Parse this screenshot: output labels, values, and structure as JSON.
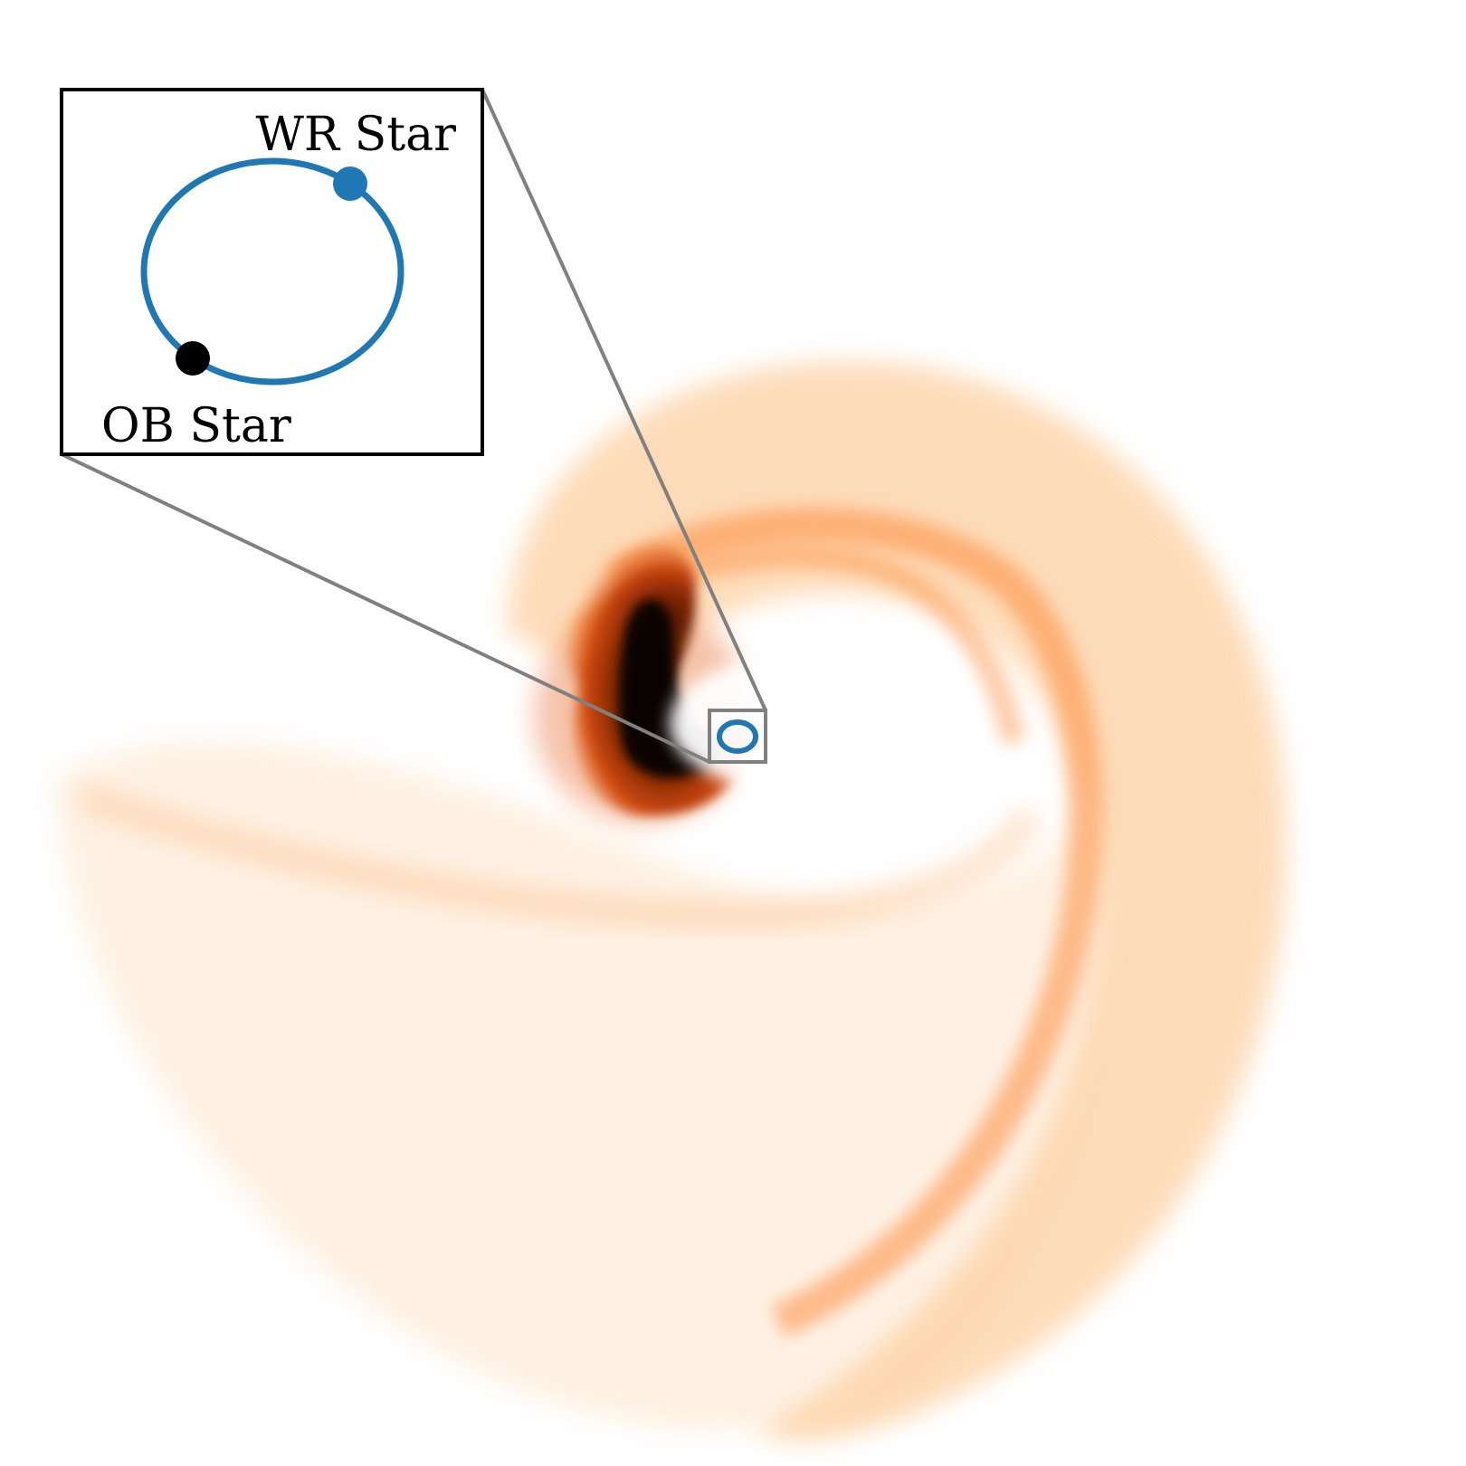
{
  "inset": {
    "wr_label": "WR Star",
    "ob_label": "OB Star"
  },
  "colors": {
    "orbit": "#1f77b4",
    "wr_star": "#1f77b4",
    "ob_star": "#000000",
    "connector": "#808080",
    "inset_frame": "#000000",
    "dust_light": "#fdd0a2",
    "dust_mid": "#fd8d3c",
    "dust_dark": "#7f2704"
  }
}
